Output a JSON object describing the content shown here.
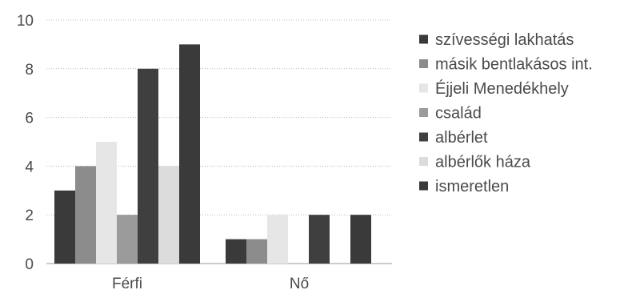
{
  "chart_data": {
    "type": "bar",
    "categories": [
      "Férfi",
      "Nő"
    ],
    "ylim": [
      0,
      10
    ],
    "yticks": [
      0,
      2,
      4,
      6,
      8,
      10
    ],
    "grid": true,
    "legend_position": "right",
    "series": [
      {
        "name": "szívességi lakhatás",
        "color": "#3a3a3a",
        "values": [
          3,
          1
        ]
      },
      {
        "name": "másik bentlakásos int.",
        "color": "#8c8c8c",
        "values": [
          4,
          1
        ]
      },
      {
        "name": "Éjjeli Menedékhely",
        "color": "#e6e6e6",
        "values": [
          5,
          2
        ]
      },
      {
        "name": "család",
        "color": "#9b9b9b",
        "values": [
          2,
          0
        ]
      },
      {
        "name": "albérlet",
        "color": "#3f3f3f",
        "values": [
          8,
          2
        ]
      },
      {
        "name": "albérlők háza",
        "color": "#dcdcdc",
        "values": [
          4,
          0
        ]
      },
      {
        "name": "ismeretlen",
        "color": "#3a3a3a",
        "values": [
          9,
          2
        ]
      }
    ]
  }
}
